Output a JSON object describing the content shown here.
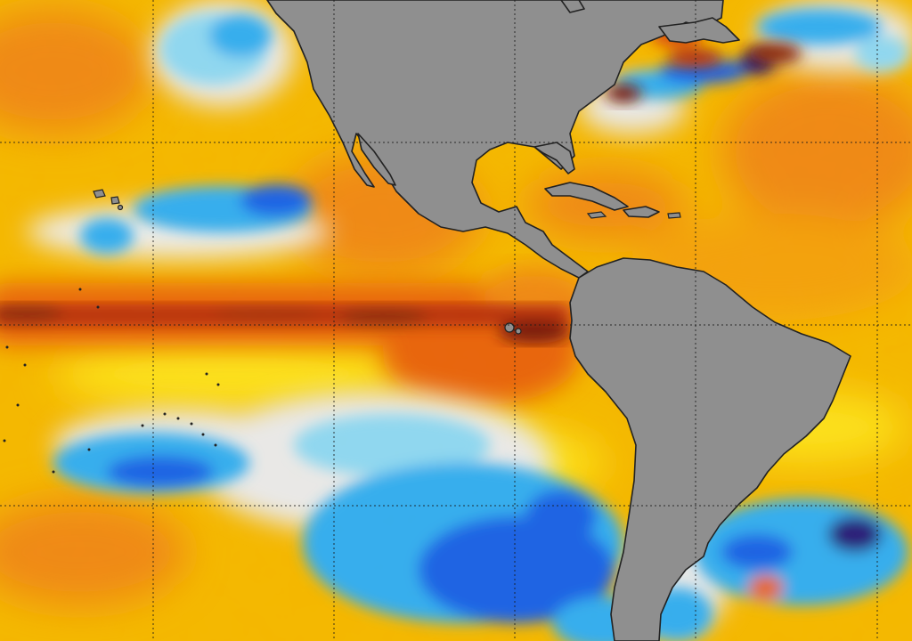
{
  "map": {
    "description_free": true,
    "colors": {
      "land": "#8f8f8f",
      "coastline": "#222222",
      "gridline": "#1a1a1a",
      "warm_strong": "#7a1f0c",
      "warm_high": "#d9480f",
      "warm_mid": "#f08a12",
      "warm_low": "#f7c000",
      "neutral_warm": "#fde21a",
      "neutral": "#e9e9e9",
      "cool_low": "#8fd8f2",
      "cool_mid": "#35aef0",
      "cool_high": "#1e63e6",
      "cool_strong": "#2a1f7a"
    },
    "layers": [
      "sea-surface-temperature-anomaly-field",
      "land-mask",
      "coastlines",
      "lat-lon-graticule"
    ],
    "regions_shown": [
      "north-america",
      "central-america",
      "caribbean",
      "south-america",
      "eastern-pacific-ocean",
      "atlantic-ocean"
    ]
  }
}
